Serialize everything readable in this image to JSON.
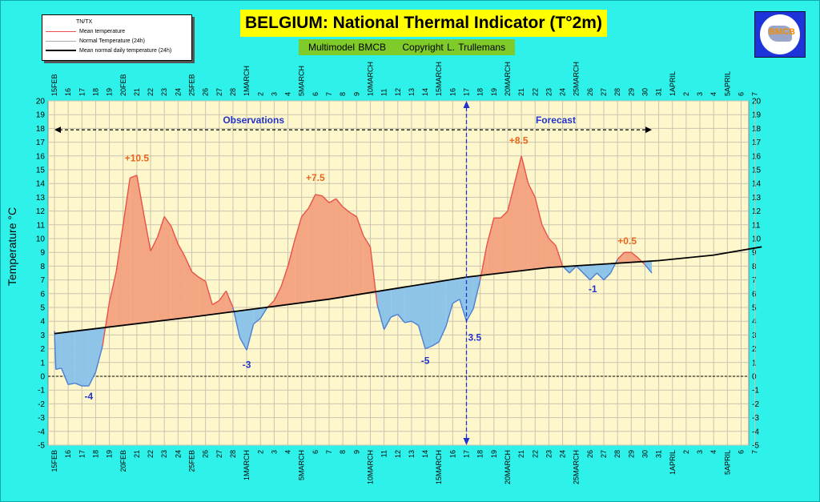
{
  "title": "BELGIUM: National Thermal Indicator (T°2m)",
  "subtitle_left": "Multimodel BMCB",
  "subtitle_right": "Copyright L. Trullemans",
  "logo_text": "BMCB",
  "colors": {
    "background": "#2ef2ea",
    "plot_background": "#fff7cc",
    "above_fill": "#f4a582",
    "below_fill": "#8ec4e8",
    "mean_line": "#e8524a",
    "normal_line": "#000000",
    "annotation_orange": "#e8661c",
    "annotation_blue": "#2233cc"
  },
  "legend": {
    "header": "TN/TX",
    "items": [
      {
        "label": "Mean temperature",
        "color": "#e8524a"
      },
      {
        "label": "Normal Temperature (24h)",
        "color": "#aaaaaa"
      },
      {
        "label": "Mean normal daily temperature (24h)",
        "color": "#000000"
      }
    ]
  },
  "chart_data": {
    "type": "area",
    "ylabel": "Temperature °C",
    "ylim": [
      -5,
      20
    ],
    "y_ticks": [
      -5,
      -4,
      -3,
      -2,
      -1,
      0,
      1,
      2,
      3,
      4,
      5,
      6,
      7,
      8,
      9,
      10,
      11,
      12,
      13,
      14,
      15,
      16,
      17,
      18,
      19,
      20
    ],
    "grid": true,
    "x_ticks": [
      "15FEB",
      "16",
      "17",
      "18",
      "19",
      "20FEB",
      "21",
      "22",
      "23",
      "24",
      "25FEB",
      "26",
      "27",
      "28",
      "1MARCH",
      "2",
      "3",
      "4",
      "5MARCH",
      "6",
      "7",
      "8",
      "9",
      "10MARCH",
      "11",
      "12",
      "13",
      "14",
      "15MARCH",
      "16",
      "17",
      "18",
      "19",
      "20MARCH",
      "21",
      "22",
      "23",
      "24",
      "25MARCH",
      "26",
      "27",
      "28",
      "29",
      "30",
      "31",
      "1APRIL",
      "2",
      "3",
      "4",
      "5APRIL",
      "6",
      "7"
    ],
    "series": [
      {
        "name": "Mean temperature",
        "points": [
          [
            0,
            3.3
          ],
          [
            0.1,
            0.5
          ],
          [
            0.5,
            0.6
          ],
          [
            1,
            -0.6
          ],
          [
            1.5,
            -0.5
          ],
          [
            2,
            -0.7
          ],
          [
            2.5,
            -0.7
          ],
          [
            3,
            0.3
          ],
          [
            3.5,
            2.2
          ],
          [
            4,
            5.4
          ],
          [
            4.5,
            7.6
          ],
          [
            5,
            11
          ],
          [
            5.5,
            14.4
          ],
          [
            6,
            14.6
          ],
          [
            6.5,
            11.8
          ],
          [
            7,
            9.1
          ],
          [
            7.5,
            10.1
          ],
          [
            8,
            11.6
          ],
          [
            8.5,
            10.9
          ],
          [
            9,
            9.6
          ],
          [
            9.5,
            8.7
          ],
          [
            10,
            7.6
          ],
          [
            10.5,
            7.2
          ],
          [
            11,
            6.9
          ],
          [
            11.5,
            5.2
          ],
          [
            12,
            5.5
          ],
          [
            12.5,
            6.2
          ],
          [
            13,
            5
          ],
          [
            13.5,
            2.8
          ],
          [
            14,
            1.9
          ],
          [
            14.5,
            3.8
          ],
          [
            15,
            4.2
          ],
          [
            15.5,
            5
          ],
          [
            16,
            5.5
          ],
          [
            16.5,
            6.5
          ],
          [
            17,
            8
          ],
          [
            17.5,
            9.9
          ],
          [
            18,
            11.6
          ],
          [
            18.5,
            12.2
          ],
          [
            19,
            13.2
          ],
          [
            19.5,
            13.1
          ],
          [
            20,
            12.6
          ],
          [
            20.5,
            12.9
          ],
          [
            21,
            12.3
          ],
          [
            21.5,
            11.9
          ],
          [
            22,
            11.6
          ],
          [
            22.5,
            10.2
          ],
          [
            23,
            9.4
          ],
          [
            23.5,
            5.2
          ],
          [
            24,
            3.4
          ],
          [
            24.5,
            4.3
          ],
          [
            25,
            4.5
          ],
          [
            25.5,
            3.9
          ],
          [
            26,
            4
          ],
          [
            26.5,
            3.7
          ],
          [
            27,
            2
          ],
          [
            27.5,
            2.2
          ],
          [
            28,
            2.5
          ],
          [
            28.5,
            3.6
          ],
          [
            29,
            5.3
          ],
          [
            29.5,
            5.6
          ],
          [
            30,
            4
          ],
          [
            30.5,
            4.9
          ],
          [
            31,
            7
          ],
          [
            31.5,
            9.6
          ],
          [
            32,
            11.5
          ],
          [
            32.5,
            11.5
          ],
          [
            33,
            12
          ],
          [
            33.5,
            14
          ],
          [
            34,
            16
          ],
          [
            34.5,
            14
          ],
          [
            35,
            13
          ],
          [
            35.5,
            11
          ],
          [
            36,
            10
          ],
          [
            36.5,
            9.5
          ],
          [
            37,
            8
          ],
          [
            37.5,
            7.5
          ],
          [
            38,
            8
          ],
          [
            38.5,
            7.5
          ],
          [
            39,
            7
          ],
          [
            39.5,
            7.5
          ],
          [
            40,
            7
          ],
          [
            40.5,
            7.5
          ],
          [
            41,
            8.5
          ],
          [
            41.5,
            9
          ],
          [
            42,
            9
          ],
          [
            42.5,
            8.6
          ],
          [
            43,
            8.1
          ],
          [
            43.5,
            7.5
          ]
        ]
      },
      {
        "name": "Mean normal daily temperature (24h)",
        "points": [
          [
            0,
            3.1
          ],
          [
            10,
            4.3
          ],
          [
            20,
            5.6
          ],
          [
            30,
            7.2
          ],
          [
            36,
            7.9
          ],
          [
            44,
            8.4
          ],
          [
            48,
            8.8
          ],
          [
            51.5,
            9.4
          ]
        ]
      }
    ],
    "annotations": [
      {
        "text": "+10.5",
        "x": 6,
        "y": 15.6,
        "color": "orange"
      },
      {
        "text": "-4",
        "x": 2.5,
        "y": -1.7,
        "color": "blue"
      },
      {
        "text": "-3",
        "x": 14,
        "y": 0.6,
        "color": "blue"
      },
      {
        "text": "+7.5",
        "x": 19,
        "y": 14.2,
        "color": "orange"
      },
      {
        "text": "-5",
        "x": 27,
        "y": 0.9,
        "color": "blue"
      },
      {
        "text": "3.5",
        "x": 30.6,
        "y": 2.6,
        "color": "blue"
      },
      {
        "text": "+8.5",
        "x": 33.8,
        "y": 16.9,
        "color": "orange"
      },
      {
        "text": "-1",
        "x": 39.2,
        "y": 6.1,
        "color": "blue"
      },
      {
        "text": "+0.5",
        "x": 41.7,
        "y": 9.6,
        "color": "orange"
      }
    ],
    "observations_label": "Observations",
    "forecast_label": "Forecast",
    "arrow_y": 17.9,
    "arrow_x_range": [
      0,
      43.5
    ],
    "divider_x": 30,
    "forecast_label_x": 36.5,
    "observations_label_x": 14.5
  }
}
